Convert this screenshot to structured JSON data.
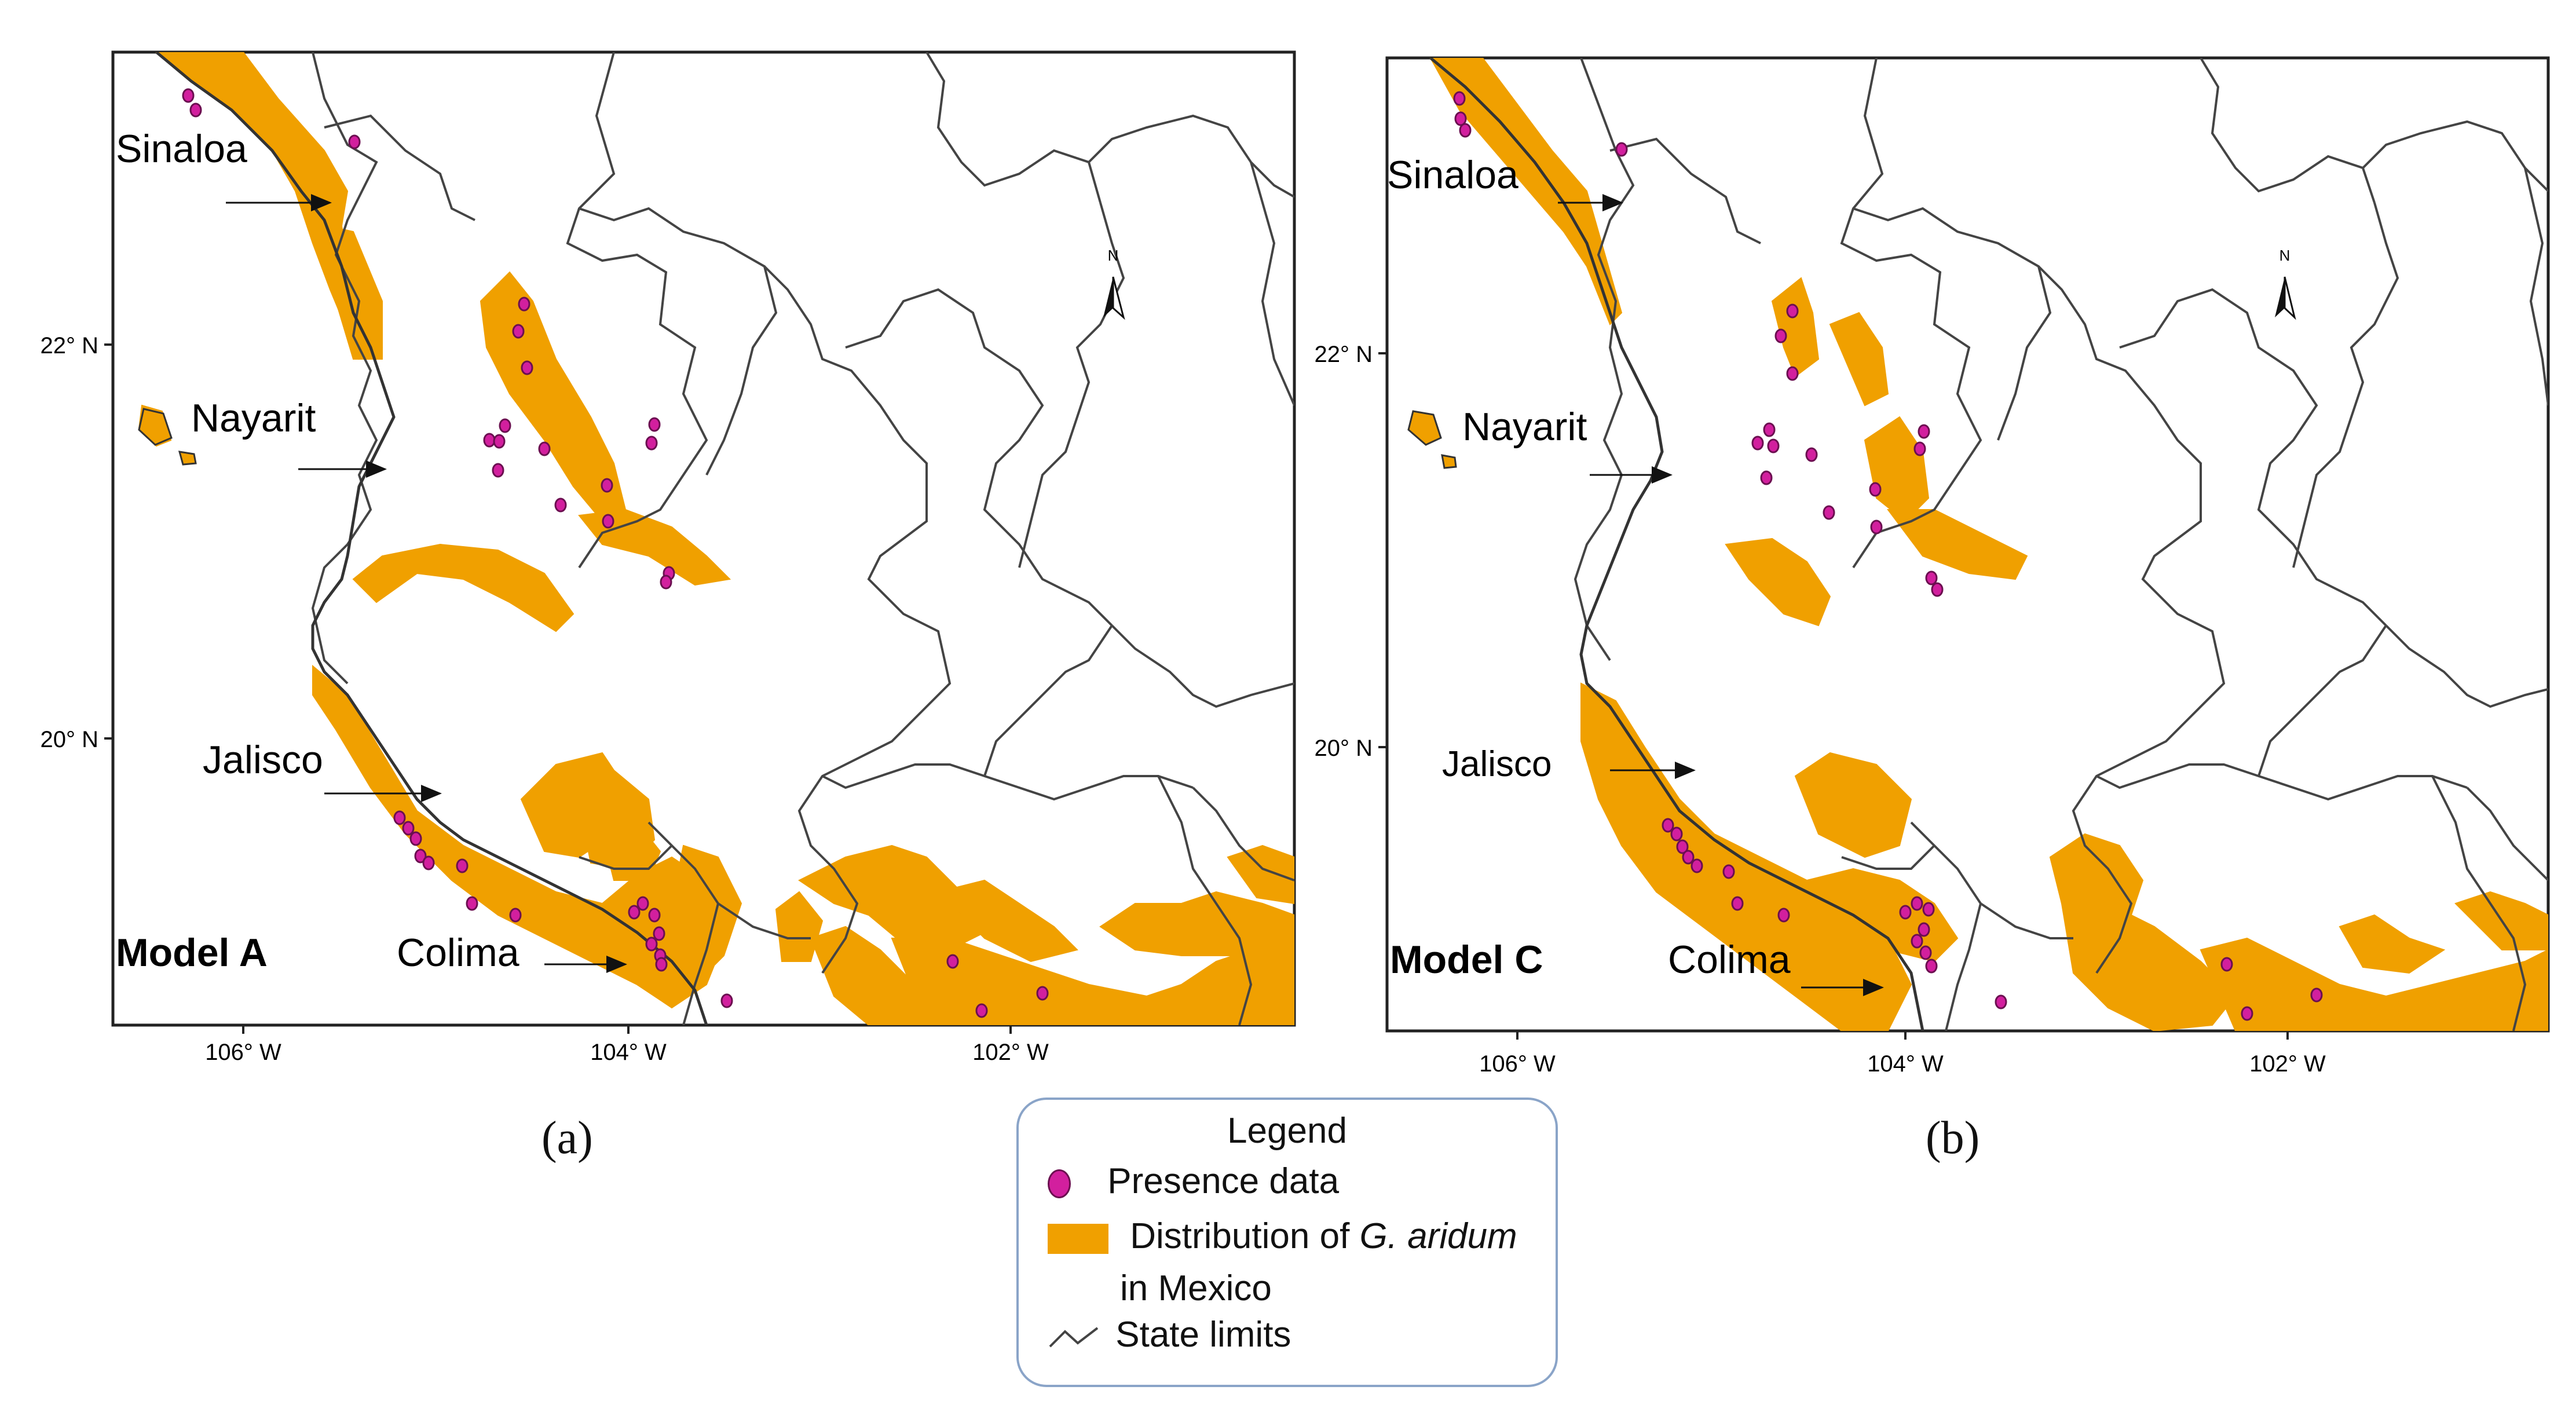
{
  "panels": [
    {
      "id": "a",
      "model_label": "Model A",
      "panel_label": "(a)",
      "state_labels": [
        "Sinaloa",
        "Nayarit",
        "Jalisco",
        "Colima"
      ],
      "lat_ticks": [
        "22° N",
        "20° N"
      ],
      "lon_ticks": [
        "106° W",
        "104° W",
        "102° W"
      ],
      "north_arrow": "N"
    },
    {
      "id": "b",
      "model_label": "Model C",
      "panel_label": "(b)",
      "state_labels": [
        "Sinaloa",
        "Nayarit",
        "Jalisco",
        "Colima"
      ],
      "lat_ticks": [
        "22° N",
        "20° N"
      ],
      "lon_ticks": [
        "106° W",
        "104° W",
        "102° W"
      ],
      "north_arrow": "N"
    }
  ],
  "legend": {
    "title": "Legend",
    "presence": "Presence data",
    "distribution_prefix": "Distribution of ",
    "distribution_species": "G. aridum",
    "distribution_suffix": "in Mexico",
    "state_limits": "State limits"
  },
  "colors": {
    "distribution": "#f0a000",
    "presence": "#d21f9e",
    "presence_stroke": "#6b0f50",
    "state_limits": "#444444"
  },
  "icons": [
    "presence-dot-icon",
    "distribution-swatch-icon",
    "state-limit-line-icon",
    "north-arrow-icon"
  ]
}
